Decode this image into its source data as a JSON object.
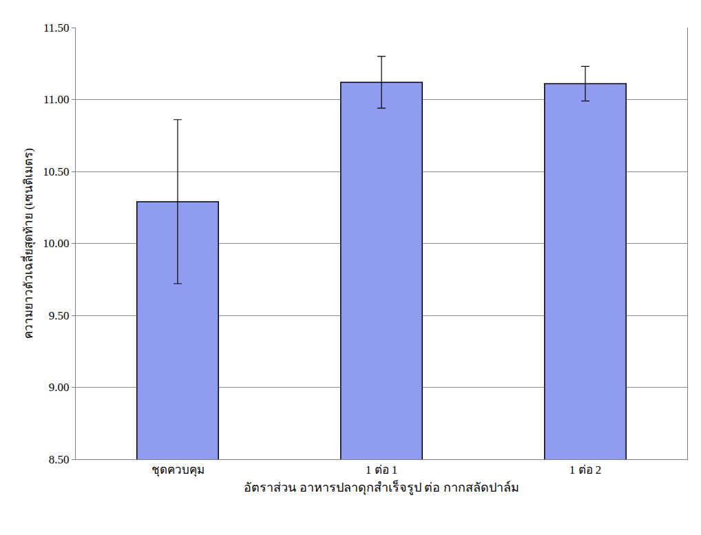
{
  "chart_data": {
    "type": "bar",
    "xlabel": "อัตราส่วน อาหารปลาดุกสำเร็จรูป ต่อ กากสลัดปาล์ม",
    "ylabel": "ความยาวตัวเฉลี่ยสุดท้าย (เซนติเมตร)",
    "categories": [
      "ชุดควบคุม",
      "1 ต่อ 1",
      "1 ต่อ 2"
    ],
    "values": [
      10.29,
      11.12,
      11.11
    ],
    "errors": [
      0.57,
      0.18,
      0.12
    ],
    "color": "#8f9cf0",
    "ylim": [
      8.5,
      11.5
    ],
    "yticks": [
      {
        "value": 8.5,
        "label": "8.50"
      },
      {
        "value": 9,
        "label": "9.00"
      },
      {
        "value": 9.5,
        "label": "9.50"
      },
      {
        "value": 10,
        "label": "10.00"
      },
      {
        "value": 10.5,
        "label": "10.50"
      },
      {
        "value": 11,
        "label": "11.00"
      },
      {
        "value": 11.5,
        "label": "11.50"
      }
    ],
    "grid": true
  }
}
